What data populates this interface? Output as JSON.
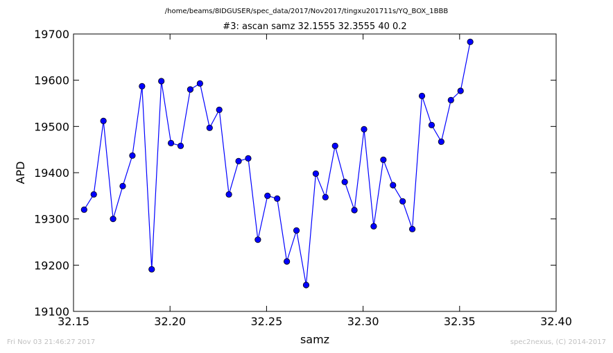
{
  "footer": {
    "timestamp": "Fri Nov 03 21:46:27 2017",
    "credit": "spec2nexus, (C) 2014-2017"
  },
  "chart_data": {
    "type": "line",
    "title": "/home/beams/8IDGUSER/spec_data/2017/Nov2017/tingxu201711s/YQ_BOX_1BBB",
    "subtitle": "#3: ascan  samz 32.1555 32.3555  40 0.2",
    "xlabel": "samz",
    "ylabel": "APD",
    "xlim": [
      32.15,
      32.4
    ],
    "ylim": [
      19100,
      19700
    ],
    "xticks": [
      "32.15",
      "32.20",
      "32.25",
      "32.30",
      "32.35",
      "32.40"
    ],
    "yticks": [
      "19100",
      "19200",
      "19300",
      "19400",
      "19500",
      "19600",
      "19700"
    ],
    "grid": false,
    "legend": "none",
    "line_color": "#0000ff",
    "marker_color": "#0000ff",
    "marker_edge": "#000000",
    "series": [
      {
        "x": [
          32.1555,
          32.1605,
          32.1655,
          32.1705,
          32.1755,
          32.1805,
          32.1855,
          32.1905,
          32.1955,
          32.2005,
          32.2055,
          32.2105,
          32.2155,
          32.2205,
          32.2255,
          32.2305,
          32.2355,
          32.2405,
          32.2455,
          32.2505,
          32.2555,
          32.2605,
          32.2655,
          32.2705,
          32.2755,
          32.2805,
          32.2855,
          32.2905,
          32.2955,
          32.3005,
          32.3055,
          32.3105,
          32.3155,
          32.3205,
          32.3255,
          32.3305,
          32.3355,
          32.3405,
          32.3455,
          32.3505,
          32.3555
        ],
        "y": [
          19320,
          19353,
          19512,
          19300,
          19371,
          19437,
          19587,
          19191,
          19598,
          19464,
          19458,
          19580,
          19593,
          19497,
          19536,
          19353,
          19425,
          19431,
          19255,
          19350,
          19344,
          19208,
          19275,
          19157,
          19398,
          19347,
          19458,
          19380,
          19319,
          19494,
          19284,
          19428,
          19373,
          19338,
          19278,
          19566,
          19503,
          19467,
          19557,
          19577,
          19683
        ]
      }
    ]
  }
}
